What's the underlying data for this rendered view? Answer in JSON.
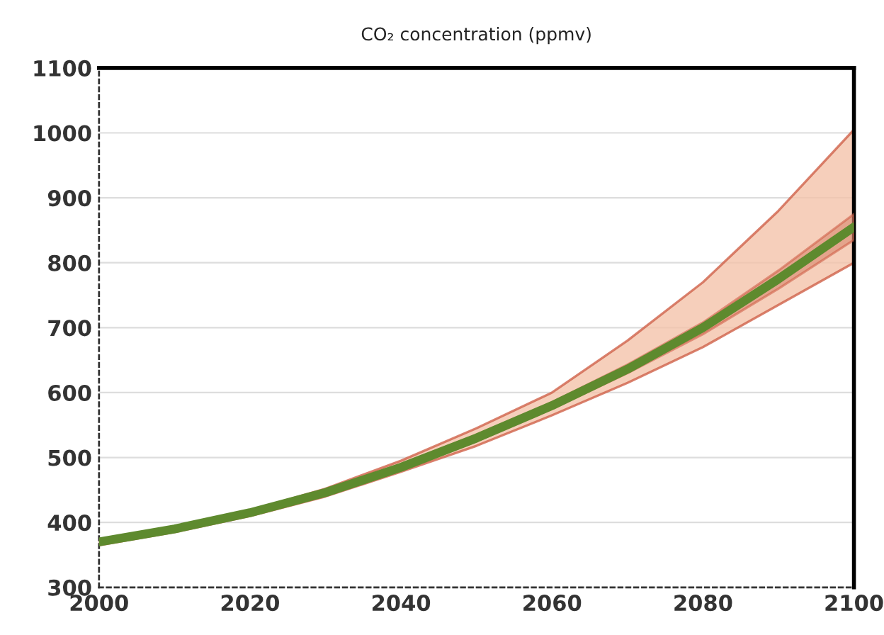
{
  "chart_data": {
    "type": "line",
    "title": "CO₂ concentration (ppmv)",
    "x": [
      2000,
      2010,
      2020,
      2030,
      2040,
      2050,
      2060,
      2070,
      2080,
      2090,
      2100
    ],
    "series": [
      {
        "color": "#5e8a2e",
        "values": [
          370,
          390,
          415,
          446,
          485,
          530,
          580,
          636,
          700,
          775,
          855
        ],
        "lower": [
          365,
          385,
          410,
          440,
          478,
          518,
          565,
          615,
          670,
          735,
          800
        ],
        "upper": [
          373,
          393,
          418,
          452,
          495,
          545,
          600,
          680,
          770,
          880,
          1005
        ]
      },
      {
        "color": "#d9876c",
        "values": [
          null,
          null,
          null,
          null,
          null,
          null,
          null,
          null,
          null,
          null,
          null
        ],
        "lower": [
          367,
          387,
          412,
          442,
          480,
          525,
          575,
          630,
          690,
          760,
          835
        ],
        "upper": [
          373,
          393,
          418,
          449,
          490,
          535,
          585,
          643,
          708,
          788,
          875
        ]
      }
    ],
    "xlim": [
      2000,
      2100
    ],
    "xticks": [
      2000,
      2020,
      2040,
      2060,
      2080,
      2100
    ],
    "ylim": [
      300,
      1100
    ],
    "yticks": [
      300,
      400,
      500,
      600,
      700,
      800,
      900,
      1000,
      1100
    ],
    "grid": "y",
    "marker": "none",
    "line_style": "solid"
  }
}
